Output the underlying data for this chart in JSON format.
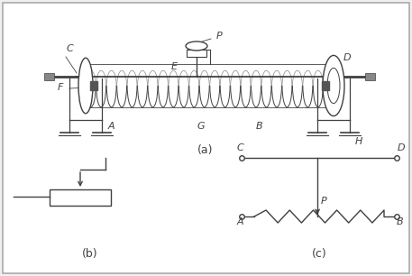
{
  "bg_color": "#f0f0f0",
  "border_color": "#888888",
  "line_color": "#404040",
  "label_color": "#333333",
  "title_a": "(a)",
  "title_b": "(b)",
  "title_c": "(c)"
}
